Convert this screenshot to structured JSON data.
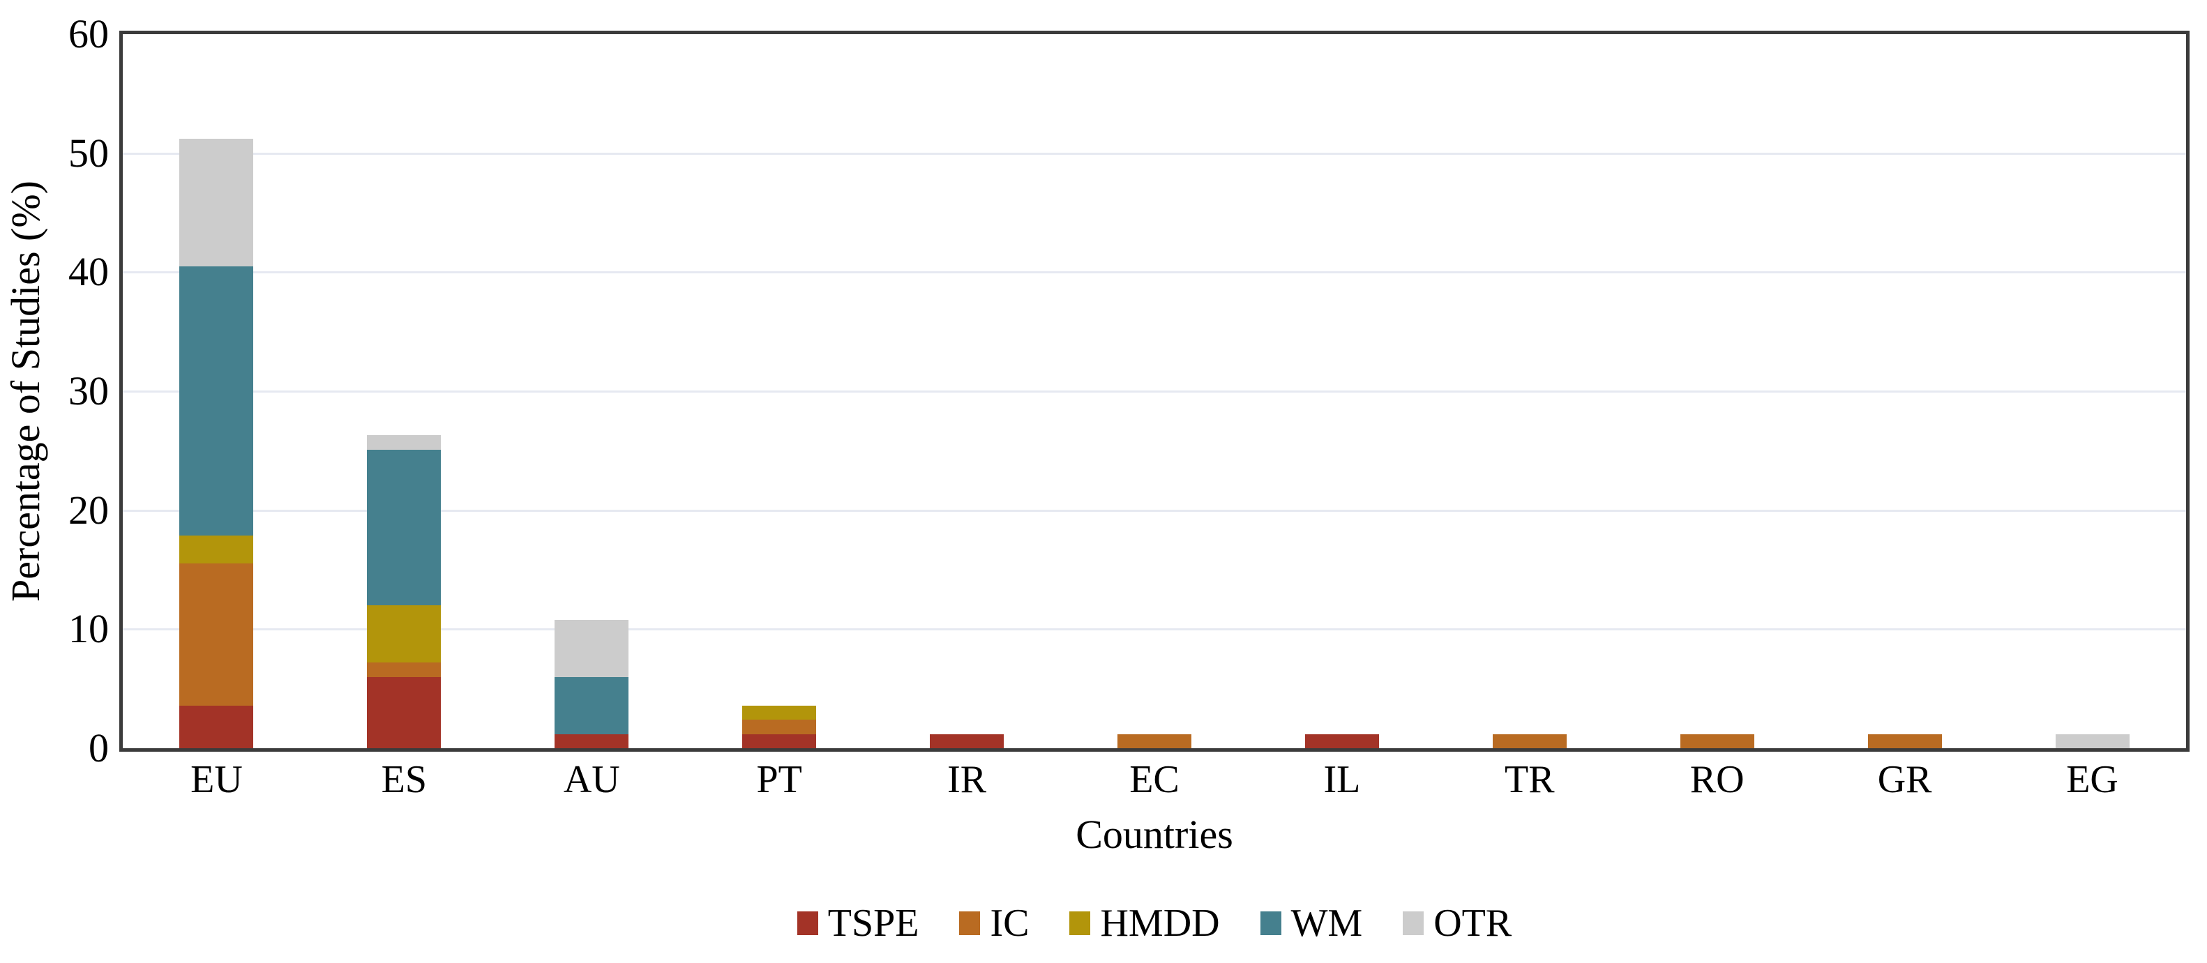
{
  "figure": {
    "background": "#FFFFFF",
    "frame_color": "#3B3B3B",
    "grid_color": "#E6E9F1"
  },
  "chart_data": {
    "type": "bar",
    "stacked": true,
    "title": "",
    "xlabel": "Countries",
    "ylabel": "Percentage of Studies (%)",
    "ylim": [
      0,
      60
    ],
    "yticks": [
      0,
      10,
      20,
      30,
      40,
      50,
      60
    ],
    "grid": true,
    "legend_position": "bottom",
    "categories": [
      "EU",
      "ES",
      "AU",
      "PT",
      "IR",
      "EC",
      "IL",
      "TR",
      "RO",
      "GR",
      "EG"
    ],
    "series": [
      {
        "name": "TSPE",
        "color": "#A33327",
        "values": [
          3.6,
          6.0,
          1.2,
          1.2,
          1.2,
          0,
          1.2,
          0,
          0,
          0,
          0
        ]
      },
      {
        "name": "IC",
        "color": "#B96B22",
        "values": [
          11.9,
          1.2,
          0,
          1.2,
          0,
          1.2,
          0,
          1.2,
          1.2,
          1.2,
          0
        ]
      },
      {
        "name": "HMDD",
        "color": "#B2950B",
        "values": [
          2.4,
          4.8,
          0,
          1.2,
          0,
          0,
          0,
          0,
          0,
          0,
          0
        ]
      },
      {
        "name": "WM",
        "color": "#45808E",
        "values": [
          22.6,
          13.1,
          4.8,
          0,
          0,
          0,
          0,
          0,
          0,
          0,
          0
        ]
      },
      {
        "name": "OTR",
        "color": "#CCCCCC",
        "values": [
          10.7,
          1.2,
          4.8,
          0,
          0,
          0,
          0,
          0,
          0,
          0,
          1.2
        ]
      }
    ]
  }
}
